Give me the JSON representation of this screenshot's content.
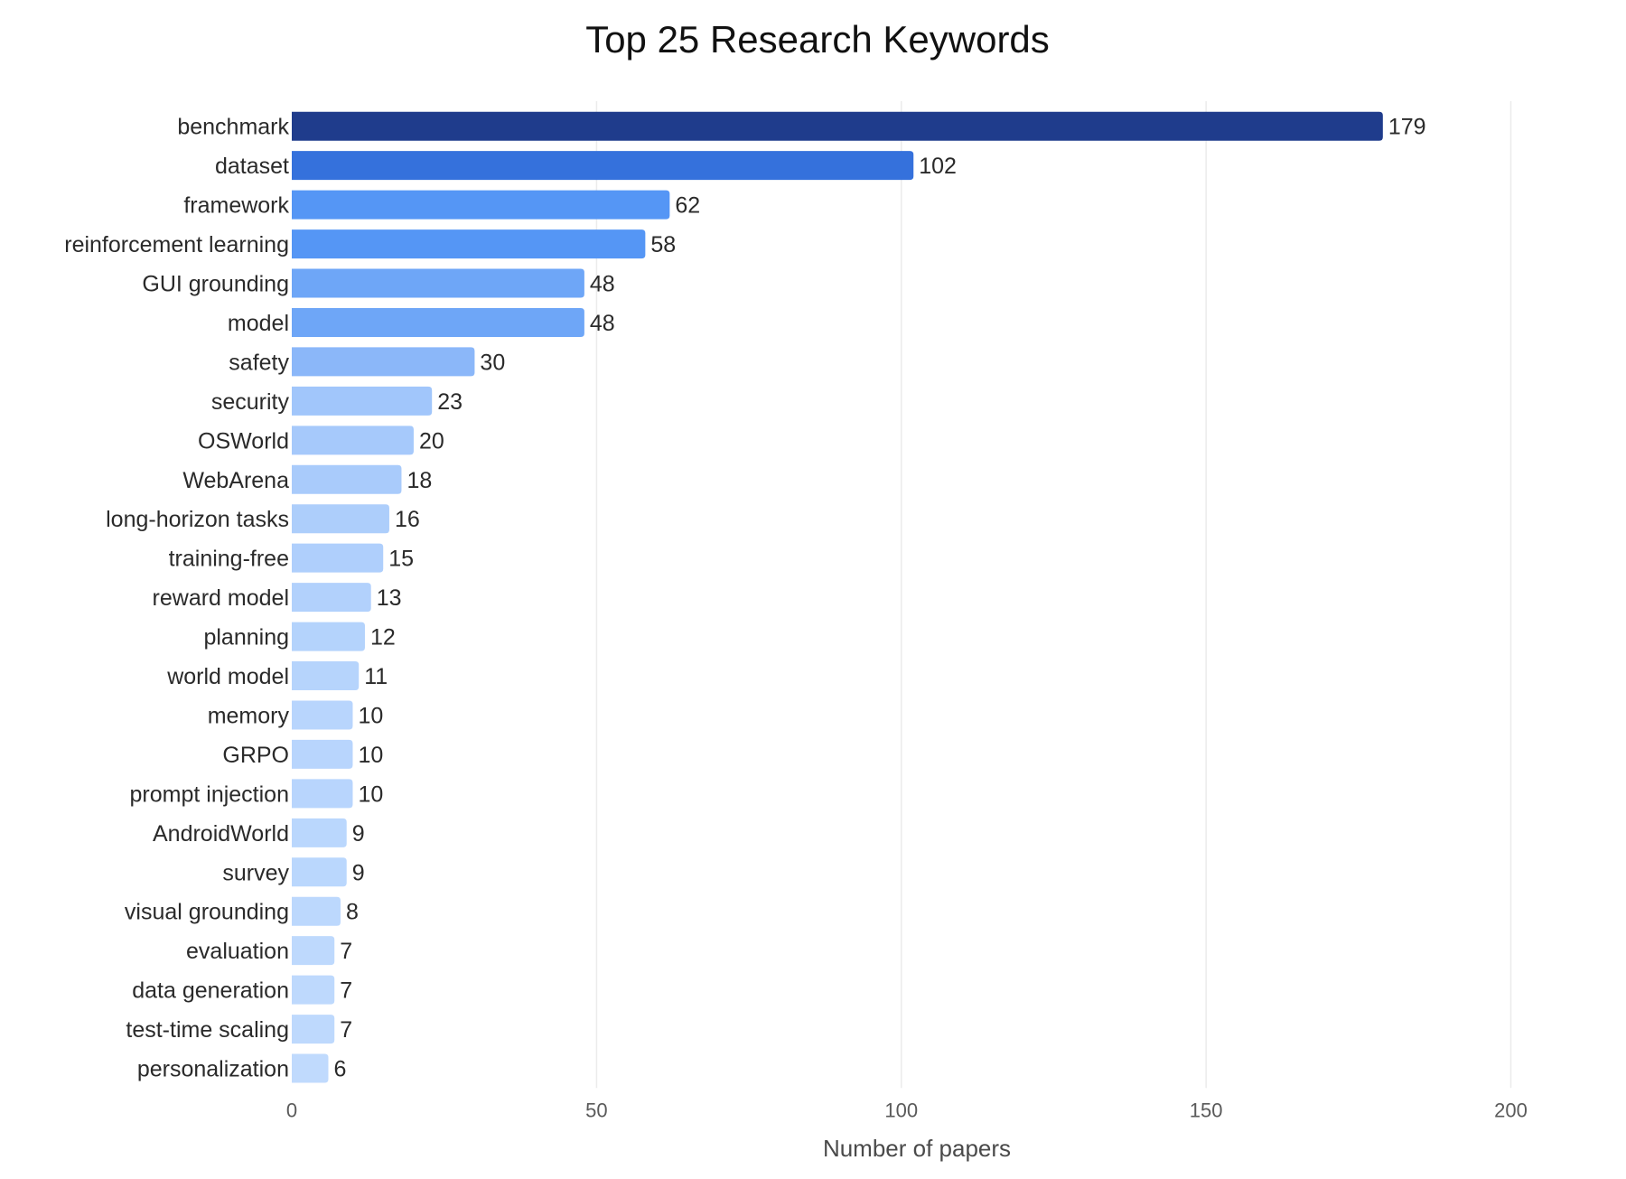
{
  "chart_data": {
    "type": "bar",
    "orientation": "horizontal",
    "title": "Top 25 Research Keywords",
    "xlabel": "Number of papers",
    "ylabel": "",
    "xlim": [
      0,
      210
    ],
    "x_ticks": [
      0,
      50,
      100,
      150,
      200
    ],
    "grid": "vertical",
    "data_labels": true,
    "categories": [
      "benchmark",
      "dataset",
      "framework",
      "reinforcement learning",
      "GUI grounding",
      "model",
      "safety",
      "security",
      "OSWorld",
      "WebArena",
      "long-horizon tasks",
      "training-free",
      "reward model",
      "planning",
      "world model",
      "memory",
      "GRPO",
      "prompt injection",
      "AndroidWorld",
      "survey",
      "visual grounding",
      "evaluation",
      "data generation",
      "test-time scaling",
      "personalization"
    ],
    "values": [
      179,
      102,
      62,
      58,
      48,
      48,
      30,
      23,
      20,
      18,
      16,
      15,
      13,
      12,
      11,
      10,
      10,
      10,
      9,
      9,
      8,
      7,
      7,
      7,
      6
    ],
    "colors": [
      "#1f3c8c",
      "#3571dc",
      "#5596f5",
      "#5596f5",
      "#6ea6f7",
      "#6ea6f7",
      "#8bb7f9",
      "#a1c6fb",
      "#a6c9fb",
      "#a9cbfb",
      "#adcefb",
      "#afcffc",
      "#b2d1fc",
      "#b4d3fc",
      "#b6d4fc",
      "#b8d5fd",
      "#b8d5fd",
      "#b8d5fd",
      "#bad7fd",
      "#bad7fd",
      "#bcd8fd",
      "#bed9fd",
      "#bed9fd",
      "#bed9fd",
      "#c0dafd"
    ]
  }
}
